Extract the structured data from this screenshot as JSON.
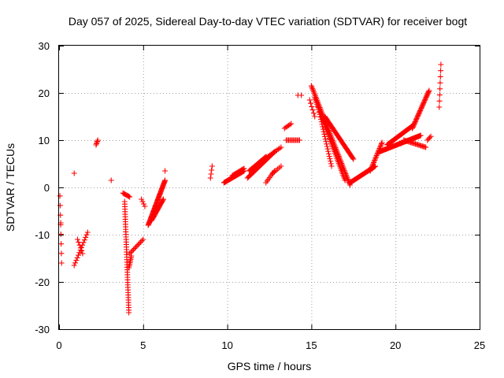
{
  "chart_data": {
    "type": "scatter",
    "title": "Day 057 of 2025, Sidereal Day-to-day VTEC variation (SDTVAR) for receiver bogt",
    "xlabel": "GPS time / hours",
    "ylabel": "SDTVAR / TECUs",
    "xlim": [
      0,
      25
    ],
    "ylim": [
      -30,
      30
    ],
    "xticks": [
      0,
      5,
      10,
      15,
      20,
      25
    ],
    "yticks": [
      -30,
      -20,
      -10,
      0,
      10,
      20,
      30
    ],
    "grid": true,
    "marker": "+",
    "color": "#ff0000",
    "series": [
      {
        "name": "SDTVAR",
        "segments": [
          {
            "x0": 0.05,
            "x1": 0.15,
            "y0": -1.8,
            "y1": -16.0,
            "n": 8
          },
          {
            "x0": 0.9,
            "x1": 1.7,
            "y0": -16.5,
            "y1": -9.5,
            "n": 14
          },
          {
            "x0": 1.1,
            "x1": 1.4,
            "y0": -11.0,
            "y1": -14.0,
            "n": 6
          },
          {
            "x0": 2.2,
            "x1": 2.3,
            "y0": 9.0,
            "y1": 10.0,
            "n": 5
          },
          {
            "x0": 3.8,
            "x1": 4.2,
            "y0": -1.2,
            "y1": -2.0,
            "n": 8
          },
          {
            "x0": 3.9,
            "x1": 4.15,
            "y0": -3.0,
            "y1": -26.5,
            "n": 45
          },
          {
            "x0": 4.15,
            "x1": 4.3,
            "y0": -17.0,
            "y1": -14.5,
            "n": 8
          },
          {
            "x0": 4.2,
            "x1": 5.0,
            "y0": -14.0,
            "y1": -11.0,
            "n": 12
          },
          {
            "x0": 4.9,
            "x1": 5.1,
            "y0": -2.5,
            "y1": -4.0,
            "n": 4
          },
          {
            "x0": 5.3,
            "x1": 6.3,
            "y0": -8.0,
            "y1": 1.5,
            "n": 50
          },
          {
            "x0": 5.5,
            "x1": 6.2,
            "y0": -7.0,
            "y1": -2.5,
            "n": 25
          },
          {
            "x0": 9.0,
            "x1": 9.1,
            "y0": 2.0,
            "y1": 4.5,
            "n": 4
          },
          {
            "x0": 9.8,
            "x1": 11.0,
            "y0": 1.0,
            "y1": 3.5,
            "n": 30
          },
          {
            "x0": 10.3,
            "x1": 11.0,
            "y0": 2.5,
            "y1": 4.0,
            "n": 14
          },
          {
            "x0": 11.2,
            "x1": 12.8,
            "y0": 2.0,
            "y1": 7.5,
            "n": 30
          },
          {
            "x0": 11.3,
            "x1": 12.3,
            "y0": 3.5,
            "y1": 6.5,
            "n": 20
          },
          {
            "x0": 12.0,
            "x1": 13.2,
            "y0": 5.5,
            "y1": 8.5,
            "n": 15
          },
          {
            "x0": 12.3,
            "x1": 12.8,
            "y0": 1.0,
            "y1": 3.5,
            "n": 8
          },
          {
            "x0": 12.7,
            "x1": 13.2,
            "y0": 3.0,
            "y1": 4.5,
            "n": 6
          },
          {
            "x0": 13.5,
            "x1": 14.3,
            "y0": 10.0,
            "y1": 10.0,
            "n": 12
          },
          {
            "x0": 13.4,
            "x1": 13.8,
            "y0": 12.5,
            "y1": 13.5,
            "n": 6
          },
          {
            "x0": 14.2,
            "x1": 14.4,
            "y0": 19.5,
            "y1": 19.5,
            "n": 2
          },
          {
            "x0": 14.9,
            "x1": 15.2,
            "y0": 18.5,
            "y1": 15.0,
            "n": 6
          },
          {
            "x0": 15.0,
            "x1": 17.3,
            "y0": 21.5,
            "y1": 0.5,
            "n": 70
          },
          {
            "x0": 15.2,
            "x1": 17.0,
            "y0": 19.0,
            "y1": 1.5,
            "n": 50
          },
          {
            "x0": 15.4,
            "x1": 16.2,
            "y0": 17.0,
            "y1": 4.5,
            "n": 25
          },
          {
            "x0": 15.8,
            "x1": 17.5,
            "y0": 15.0,
            "y1": 6.0,
            "n": 45
          },
          {
            "x0": 17.3,
            "x1": 18.8,
            "y0": 1.0,
            "y1": 4.5,
            "n": 40
          },
          {
            "x0": 18.5,
            "x1": 19.2,
            "y0": 3.5,
            "y1": 9.5,
            "n": 25
          },
          {
            "x0": 19.0,
            "x1": 21.5,
            "y0": 7.5,
            "y1": 11.0,
            "n": 60
          },
          {
            "x0": 19.5,
            "x1": 21.0,
            "y0": 9.0,
            "y1": 13.0,
            "n": 40
          },
          {
            "x0": 21.0,
            "x1": 22.0,
            "y0": 12.5,
            "y1": 20.5,
            "n": 35
          },
          {
            "x0": 20.5,
            "x1": 21.8,
            "y0": 10.0,
            "y1": 8.5,
            "n": 20
          },
          {
            "x0": 21.9,
            "x1": 22.1,
            "y0": 10.0,
            "y1": 10.8,
            "n": 4
          },
          {
            "x0": 22.6,
            "x1": 22.7,
            "y0": 17.0,
            "y1": 26.0,
            "n": 8
          }
        ],
        "points": [
          {
            "x": 0.9,
            "y": 3.0
          },
          {
            "x": 3.1,
            "y": 1.5
          },
          {
            "x": 6.3,
            "y": 3.5
          },
          {
            "x": 0.1,
            "y": -7.5
          }
        ]
      }
    ]
  }
}
